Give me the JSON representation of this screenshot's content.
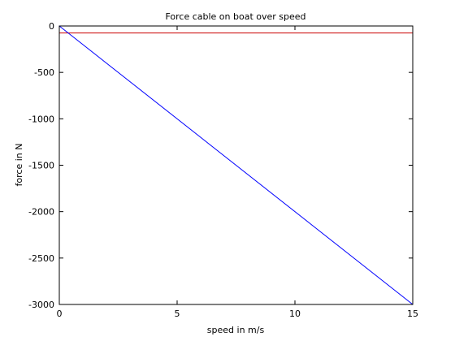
{
  "chart_data": {
    "type": "line",
    "title": "Force cable on boat over speed",
    "xlabel": "speed in m/s",
    "ylabel": "force in N",
    "xlim": [
      0,
      15
    ],
    "ylim": [
      -3000,
      0
    ],
    "x_ticks": [
      0,
      5,
      10,
      15
    ],
    "y_ticks": [
      0,
      -500,
      -1000,
      -1500,
      -2000,
      -2500,
      -3000
    ],
    "grid": false,
    "legend": "none",
    "series": [
      {
        "color": "#cc0000",
        "x": [
          0,
          15
        ],
        "y": [
          -75,
          -75
        ]
      },
      {
        "color": "#0000ff",
        "x": [
          0,
          15
        ],
        "y": [
          0,
          -3000
        ]
      }
    ]
  }
}
